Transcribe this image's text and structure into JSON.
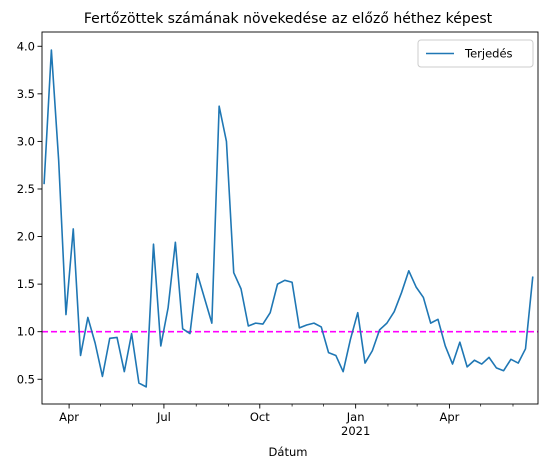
{
  "chart_data": {
    "type": "line",
    "title": "Fertőzöttek számának növekedése az előző héthez képest",
    "xlabel": "Dátum",
    "ylabel": "",
    "xlim": [
      "2020-03-06",
      "2021-06-25"
    ],
    "ylim": [
      0.24,
      4.15
    ],
    "x_ticks": [
      {
        "date": "2020-04-01",
        "label": "Apr",
        "sub": ""
      },
      {
        "date": "2020-07-01",
        "label": "Jul",
        "sub": ""
      },
      {
        "date": "2020-10-01",
        "label": "Oct",
        "sub": ""
      },
      {
        "date": "2021-01-01",
        "label": "Jan",
        "sub": "2021"
      },
      {
        "date": "2021-04-01",
        "label": "Apr",
        "sub": ""
      }
    ],
    "x_minor_ticks": [
      "2020-03-01",
      "2020-05-01",
      "2020-06-01",
      "2020-08-01",
      "2020-09-01",
      "2020-11-01",
      "2020-12-01",
      "2021-02-01",
      "2021-03-01",
      "2021-05-01",
      "2021-06-01"
    ],
    "y_ticks": [
      0.5,
      1.0,
      1.5,
      2.0,
      2.5,
      3.0,
      3.5,
      4.0
    ],
    "y_tick_labels": [
      "0.5",
      "1.0",
      "1.5",
      "2.0",
      "2.5",
      "3.0",
      "3.5",
      "4.0"
    ],
    "series": [
      {
        "name": "Terjedés",
        "color": "#1f77b4",
        "points": [
          [
            "2020-03-08",
            2.55
          ],
          [
            "2020-03-15",
            3.96
          ],
          [
            "2020-03-22",
            2.8
          ],
          [
            "2020-03-29",
            1.18
          ],
          [
            "2020-04-05",
            2.08
          ],
          [
            "2020-04-12",
            0.75
          ],
          [
            "2020-04-19",
            1.15
          ],
          [
            "2020-04-26",
            0.88
          ],
          [
            "2020-05-03",
            0.53
          ],
          [
            "2020-05-10",
            0.93
          ],
          [
            "2020-05-17",
            0.94
          ],
          [
            "2020-05-24",
            0.58
          ],
          [
            "2020-05-31",
            0.98
          ],
          [
            "2020-06-07",
            0.46
          ],
          [
            "2020-06-14",
            0.42
          ],
          [
            "2020-06-21",
            1.92
          ],
          [
            "2020-06-28",
            0.85
          ],
          [
            "2020-07-05",
            1.25
          ],
          [
            "2020-07-12",
            1.94
          ],
          [
            "2020-07-19",
            1.03
          ],
          [
            "2020-07-26",
            0.98
          ],
          [
            "2020-08-02",
            1.61
          ],
          [
            "2020-08-09",
            1.35
          ],
          [
            "2020-08-16",
            1.09
          ],
          [
            "2020-08-23",
            3.37
          ],
          [
            "2020-08-30",
            3.0
          ],
          [
            "2020-09-06",
            1.62
          ],
          [
            "2020-09-13",
            1.45
          ],
          [
            "2020-09-20",
            1.06
          ],
          [
            "2020-09-27",
            1.09
          ],
          [
            "2020-10-04",
            1.08
          ],
          [
            "2020-10-11",
            1.2
          ],
          [
            "2020-10-18",
            1.5
          ],
          [
            "2020-10-25",
            1.54
          ],
          [
            "2020-11-01",
            1.52
          ],
          [
            "2020-11-08",
            1.04
          ],
          [
            "2020-11-15",
            1.07
          ],
          [
            "2020-11-22",
            1.09
          ],
          [
            "2020-11-29",
            1.05
          ],
          [
            "2020-12-06",
            0.78
          ],
          [
            "2020-12-13",
            0.75
          ],
          [
            "2020-12-20",
            0.58
          ],
          [
            "2020-12-27",
            0.92
          ],
          [
            "2021-01-03",
            1.2
          ],
          [
            "2021-01-10",
            0.67
          ],
          [
            "2021-01-17",
            0.8
          ],
          [
            "2021-01-24",
            1.02
          ],
          [
            "2021-01-31",
            1.09
          ],
          [
            "2021-02-07",
            1.21
          ],
          [
            "2021-02-14",
            1.41
          ],
          [
            "2021-02-21",
            1.64
          ],
          [
            "2021-02-28",
            1.47
          ],
          [
            "2021-03-07",
            1.36
          ],
          [
            "2021-03-14",
            1.09
          ],
          [
            "2021-03-21",
            1.13
          ],
          [
            "2021-03-28",
            0.85
          ],
          [
            "2021-04-04",
            0.66
          ],
          [
            "2021-04-11",
            0.89
          ],
          [
            "2021-04-18",
            0.63
          ],
          [
            "2021-04-25",
            0.7
          ],
          [
            "2021-05-02",
            0.66
          ],
          [
            "2021-05-09",
            0.73
          ],
          [
            "2021-05-16",
            0.62
          ],
          [
            "2021-05-23",
            0.59
          ],
          [
            "2021-05-30",
            0.71
          ],
          [
            "2021-06-06",
            0.67
          ],
          [
            "2021-06-13",
            0.82
          ],
          [
            "2021-06-20",
            1.58
          ]
        ]
      }
    ],
    "reference_line": {
      "y": 1.0,
      "color": "#ff00ff",
      "style": "dashed"
    },
    "legend": {
      "position": "top-right"
    },
    "grid": false
  }
}
